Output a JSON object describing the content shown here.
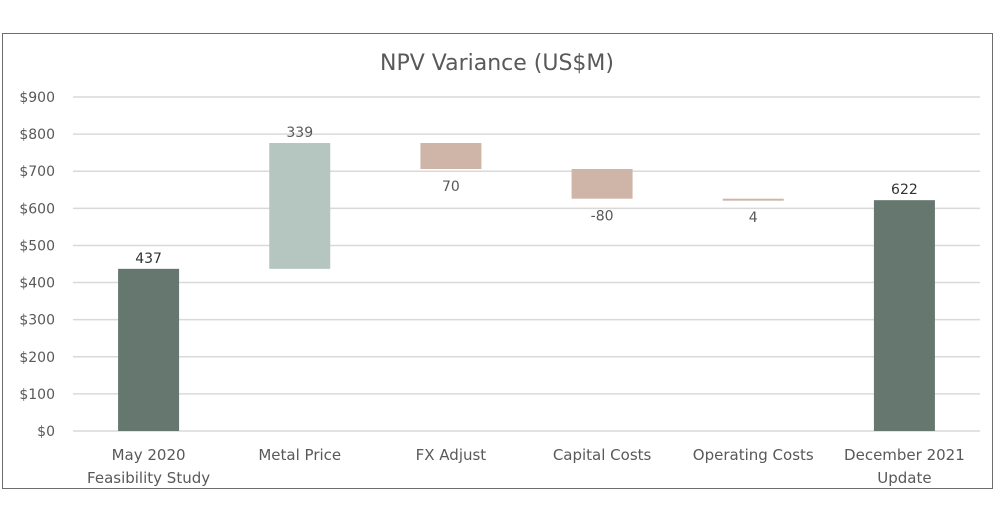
{
  "chart_data": {
    "type": "waterfall",
    "title": "NPV Variance (US$M)",
    "xlabel": "",
    "ylabel": "",
    "ylim": [
      0,
      900
    ],
    "yticks": [
      "$0",
      "$100",
      "$200",
      "$300",
      "$400",
      "$500",
      "$600",
      "$700",
      "$800",
      "$900"
    ],
    "grid": true,
    "categories": [
      [
        "May 2020",
        "Feasibility Study"
      ],
      [
        "Metal Price"
      ],
      [
        "FX Adjust"
      ],
      [
        "Capital Costs"
      ],
      [
        "Operating Costs"
      ],
      [
        "December 2021",
        "Update"
      ]
    ],
    "steps": [
      {
        "kind": "total",
        "value": 437,
        "label": "437"
      },
      {
        "kind": "increase",
        "value": 339,
        "label": "339"
      },
      {
        "kind": "decrease",
        "value": -70,
        "label": "70"
      },
      {
        "kind": "decrease",
        "value": -80,
        "label": "-80"
      },
      {
        "kind": "decrease",
        "value": -4,
        "label": "4"
      },
      {
        "kind": "total",
        "value": 622,
        "label": "622"
      }
    ],
    "colors": {
      "total": "#65776f",
      "increase": "#b5c6c0",
      "decrease": "#cfb5a8",
      "grid": "#d9d9d9",
      "text": "#595959"
    }
  }
}
